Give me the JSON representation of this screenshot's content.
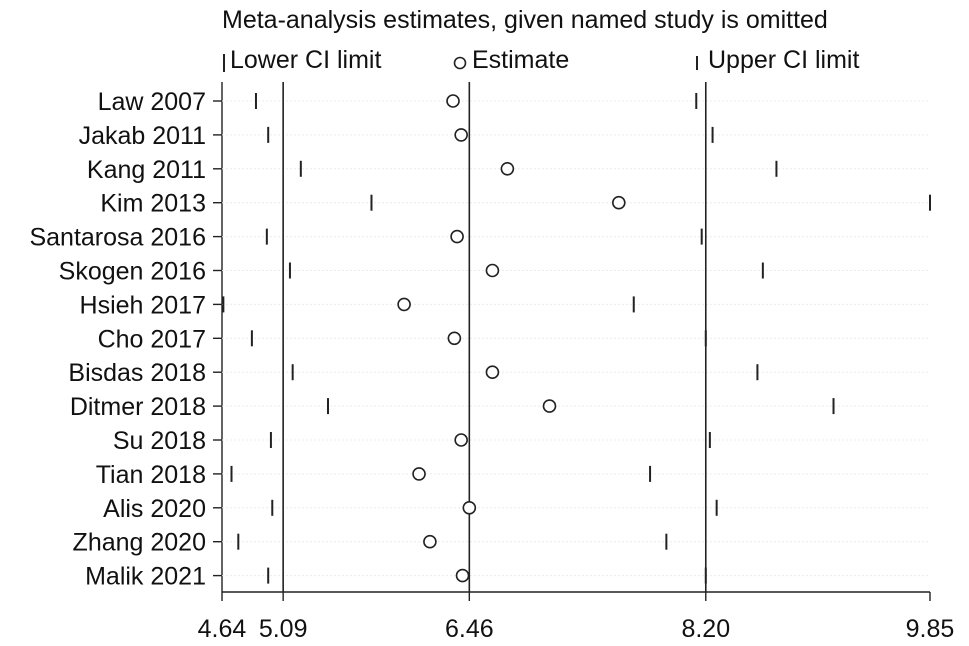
{
  "chart_data": {
    "type": "scatter",
    "title": "Meta-analysis estimates, given named study is omitted",
    "legend": {
      "lower": "Lower CI limit",
      "estimate": "Estimate",
      "upper": "Upper CI limit"
    },
    "x_ticks": [
      {
        "value": 4.64,
        "label": "4.64"
      },
      {
        "value": 5.09,
        "label": "5.09"
      },
      {
        "value": 6.46,
        "label": "6.46"
      },
      {
        "value": 8.2,
        "label": "8.20"
      },
      {
        "value": 9.85,
        "label": "9.85"
      }
    ],
    "xlim": [
      4.64,
      9.85
    ],
    "reference_lines": [
      5.09,
      6.46,
      8.2
    ],
    "studies": [
      {
        "name": "Law 2007",
        "lower": 4.89,
        "estimate": 6.34,
        "upper": 8.13
      },
      {
        "name": "Jakab 2011",
        "lower": 4.98,
        "estimate": 6.4,
        "upper": 8.25
      },
      {
        "name": "Kang 2011",
        "lower": 5.22,
        "estimate": 6.74,
        "upper": 8.72
      },
      {
        "name": "Kim 2013",
        "lower": 5.74,
        "estimate": 7.56,
        "upper": 9.85
      },
      {
        "name": "Santarosa 2016",
        "lower": 4.97,
        "estimate": 6.37,
        "upper": 8.17
      },
      {
        "name": "Skogen 2016",
        "lower": 5.14,
        "estimate": 6.63,
        "upper": 8.62
      },
      {
        "name": "Hsieh 2017",
        "lower": 4.65,
        "estimate": 5.98,
        "upper": 7.67
      },
      {
        "name": "Cho 2017",
        "lower": 4.86,
        "estimate": 6.35,
        "upper": 8.2
      },
      {
        "name": "Bisdas 2018",
        "lower": 5.16,
        "estimate": 6.63,
        "upper": 8.58
      },
      {
        "name": "Ditmer 2018",
        "lower": 5.42,
        "estimate": 7.05,
        "upper": 9.14
      },
      {
        "name": "Su 2018",
        "lower": 5.0,
        "estimate": 6.4,
        "upper": 8.23
      },
      {
        "name": "Tian 2018",
        "lower": 4.71,
        "estimate": 6.09,
        "upper": 7.79
      },
      {
        "name": "Alis 2020",
        "lower": 5.01,
        "estimate": 6.46,
        "upper": 8.28
      },
      {
        "name": "Zhang 2020",
        "lower": 4.76,
        "estimate": 6.17,
        "upper": 7.91
      },
      {
        "name": "Malik 2021",
        "lower": 4.98,
        "estimate": 6.41,
        "upper": 8.2
      }
    ]
  }
}
